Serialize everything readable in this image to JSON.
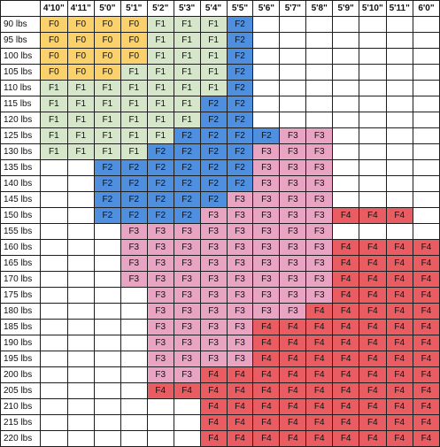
{
  "colors": {
    "F0": "#fad16a",
    "F1": "#d6e6c9",
    "F2": "#4e8fe0",
    "F3": "#e9a3c3",
    "F4": "#e85c62"
  },
  "heights": [
    "4'10\"",
    "4'11\"",
    "5'0\"",
    "5'1\"",
    "5'2\"",
    "5'3\"",
    "5'4\"",
    "5'5\"",
    "5'6\"",
    "5'7\"",
    "5'8\"",
    "5'9\"",
    "5'10\"",
    "5'11\"",
    "6'0\""
  ],
  "rows": [
    {
      "weight": "90 lbs",
      "cells": [
        "F0",
        "F0",
        "F0",
        "F0",
        "F1",
        "F1",
        "F1",
        "F2",
        "",
        "",
        "",
        "",
        "",
        "",
        ""
      ]
    },
    {
      "weight": "95 lbs",
      "cells": [
        "F0",
        "F0",
        "F0",
        "F0",
        "F1",
        "F1",
        "F1",
        "F2",
        "",
        "",
        "",
        "",
        "",
        "",
        ""
      ]
    },
    {
      "weight": "100 lbs",
      "cells": [
        "F0",
        "F0",
        "F0",
        "F0",
        "F1",
        "F1",
        "F1",
        "F2",
        "",
        "",
        "",
        "",
        "",
        "",
        ""
      ]
    },
    {
      "weight": "105 lbs",
      "cells": [
        "F0",
        "F0",
        "F0",
        "F1",
        "F1",
        "F1",
        "F1",
        "F2",
        "",
        "",
        "",
        "",
        "",
        "",
        ""
      ]
    },
    {
      "weight": "110 lbs",
      "cells": [
        "F1",
        "F1",
        "F1",
        "F1",
        "F1",
        "F1",
        "F1",
        "F2",
        "",
        "",
        "",
        "",
        "",
        "",
        ""
      ]
    },
    {
      "weight": "115 lbs",
      "cells": [
        "F1",
        "F1",
        "F1",
        "F1",
        "F1",
        "F1",
        "F2",
        "F2",
        "",
        "",
        "",
        "",
        "",
        "",
        ""
      ]
    },
    {
      "weight": "120 lbs",
      "cells": [
        "F1",
        "F1",
        "F1",
        "F1",
        "F1",
        "F1",
        "F2",
        "F2",
        "",
        "",
        "",
        "",
        "",
        "",
        ""
      ]
    },
    {
      "weight": "125 lbs",
      "cells": [
        "F1",
        "F1",
        "F1",
        "F1",
        "F1",
        "F2",
        "F2",
        "F2",
        "F2",
        "F3",
        "F3",
        "",
        "",
        "",
        ""
      ]
    },
    {
      "weight": "130 lbs",
      "cells": [
        "F1",
        "F1",
        "F1",
        "F1",
        "F2",
        "F2",
        "F2",
        "F2",
        "F3",
        "F3",
        "F3",
        "",
        "",
        "",
        ""
      ]
    },
    {
      "weight": "135 lbs",
      "cells": [
        "",
        "",
        "F2",
        "F2",
        "F2",
        "F2",
        "F2",
        "F2",
        "F3",
        "F3",
        "F3",
        "",
        "",
        "",
        ""
      ]
    },
    {
      "weight": "140 lbs",
      "cells": [
        "",
        "",
        "F2",
        "F2",
        "F2",
        "F2",
        "F2",
        "F2",
        "F3",
        "F3",
        "F3",
        "",
        "",
        "",
        ""
      ]
    },
    {
      "weight": "145 lbs",
      "cells": [
        "",
        "",
        "F2",
        "F2",
        "F2",
        "F2",
        "F2",
        "F3",
        "F3",
        "F3",
        "F3",
        "",
        "",
        "",
        ""
      ]
    },
    {
      "weight": "150 lbs",
      "cells": [
        "",
        "",
        "F2",
        "F2",
        "F2",
        "F2",
        "F3",
        "F3",
        "F3",
        "F3",
        "F3",
        "F4",
        "F4",
        "F4",
        ""
      ]
    },
    {
      "weight": "155 lbs",
      "cells": [
        "",
        "",
        "",
        "F3",
        "F3",
        "F3",
        "F3",
        "F3",
        "F3",
        "F3",
        "F3",
        "",
        "",
        "",
        ""
      ]
    },
    {
      "weight": "160 lbs",
      "cells": [
        "",
        "",
        "",
        "F3",
        "F3",
        "F3",
        "F3",
        "F3",
        "F3",
        "F3",
        "F3",
        "F4",
        "F4",
        "F4",
        "F4"
      ]
    },
    {
      "weight": "165 lbs",
      "cells": [
        "",
        "",
        "",
        "F3",
        "F3",
        "F3",
        "F3",
        "F3",
        "F3",
        "F3",
        "F3",
        "F4",
        "F4",
        "F4",
        "F4"
      ]
    },
    {
      "weight": "170 lbs",
      "cells": [
        "",
        "",
        "",
        "F3",
        "F3",
        "F3",
        "F3",
        "F3",
        "F3",
        "F3",
        "F3",
        "F4",
        "F4",
        "F4",
        "F4"
      ]
    },
    {
      "weight": "175 lbs",
      "cells": [
        "",
        "",
        "",
        "",
        "F3",
        "F3",
        "F3",
        "F3",
        "F3",
        "F3",
        "F3",
        "F4",
        "F4",
        "F4",
        "F4"
      ]
    },
    {
      "weight": "180 lbs",
      "cells": [
        "",
        "",
        "",
        "",
        "F3",
        "F3",
        "F3",
        "F3",
        "F3",
        "F3",
        "F4",
        "F4",
        "F4",
        "F4",
        "F4"
      ]
    },
    {
      "weight": "185 lbs",
      "cells": [
        "",
        "",
        "",
        "",
        "F3",
        "F3",
        "F3",
        "F3",
        "F4",
        "F4",
        "F4",
        "F4",
        "F4",
        "F4",
        "F4"
      ]
    },
    {
      "weight": "190 lbs",
      "cells": [
        "",
        "",
        "",
        "",
        "F3",
        "F3",
        "F3",
        "F3",
        "F4",
        "F4",
        "F4",
        "F4",
        "F4",
        "F4",
        "F4"
      ]
    },
    {
      "weight": "195 lbs",
      "cells": [
        "",
        "",
        "",
        "",
        "F3",
        "F3",
        "F3",
        "F3",
        "F4",
        "F4",
        "F4",
        "F4",
        "F4",
        "F4",
        "F4"
      ]
    },
    {
      "weight": "200 lbs",
      "cells": [
        "",
        "",
        "",
        "",
        "F3",
        "F3",
        "F4",
        "F4",
        "F4",
        "F4",
        "F4",
        "F4",
        "F4",
        "F4",
        "F4"
      ]
    },
    {
      "weight": "205 lbs",
      "cells": [
        "",
        "",
        "",
        "",
        "F4",
        "F4",
        "F4",
        "F4",
        "F4",
        "F4",
        "F4",
        "F4",
        "F4",
        "F4",
        "F4"
      ]
    },
    {
      "weight": "210 lbs",
      "cells": [
        "",
        "",
        "",
        "",
        "",
        "",
        "F4",
        "F4",
        "F4",
        "F4",
        "F4",
        "F4",
        "F4",
        "F4",
        "F4"
      ]
    },
    {
      "weight": "215 lbs",
      "cells": [
        "",
        "",
        "",
        "",
        "",
        "",
        "F4",
        "F4",
        "F4",
        "F4",
        "F4",
        "F4",
        "F4",
        "F4",
        "F4"
      ]
    },
    {
      "weight": "220 lbs",
      "cells": [
        "",
        "",
        "",
        "",
        "",
        "",
        "F4",
        "F4",
        "F4",
        "F4",
        "F4",
        "F4",
        "F4",
        "F4",
        "F4"
      ]
    }
  ]
}
